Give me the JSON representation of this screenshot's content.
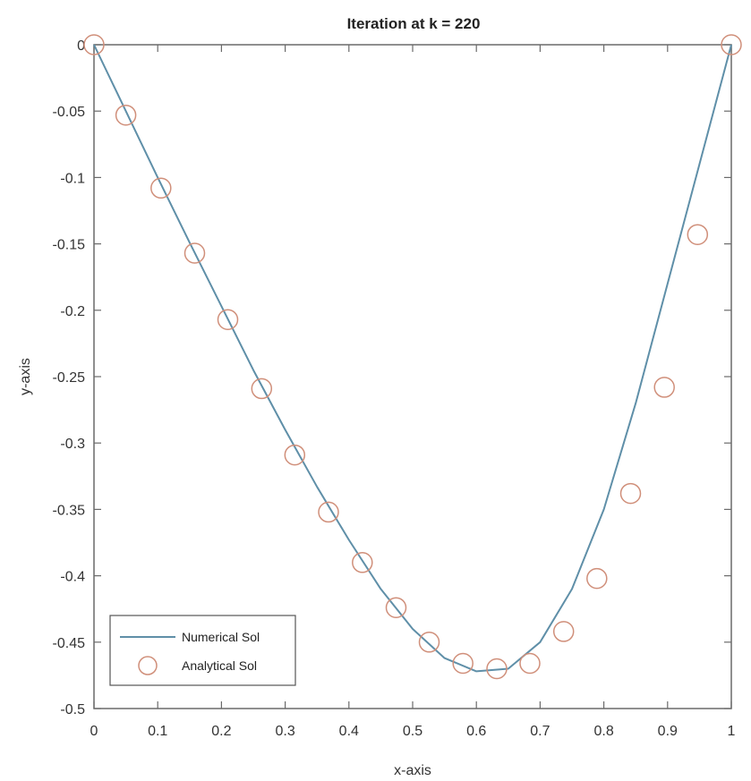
{
  "chart_data": {
    "type": "line",
    "title": "Iteration at k = 220",
    "xlabel": "x-axis",
    "ylabel": "y-axis",
    "xlim": [
      0,
      1
    ],
    "ylim": [
      -0.5,
      0
    ],
    "xticks": [
      "0",
      "0.1",
      "0.2",
      "0.3",
      "0.4",
      "0.5",
      "0.6",
      "0.7",
      "0.8",
      "0.9",
      "1"
    ],
    "yticks": [
      "0",
      "-0.05",
      "-0.1",
      "-0.15",
      "-0.2",
      "-0.25",
      "-0.3",
      "-0.35",
      "-0.4",
      "-0.45",
      "-0.5"
    ],
    "grid": false,
    "legend_location": "bottom-left",
    "series": [
      {
        "name": "Numerical Sol",
        "style": "line",
        "color": "#5f8fa8",
        "x": [
          0,
          0.05,
          0.1,
          0.15,
          0.2,
          0.25,
          0.3,
          0.35,
          0.4,
          0.45,
          0.5,
          0.55,
          0.6,
          0.65,
          0.7,
          0.75,
          0.8,
          0.85,
          0.9,
          0.95,
          1
        ],
        "y": [
          0,
          -0.05,
          -0.1,
          -0.149,
          -0.197,
          -0.245,
          -0.29,
          -0.333,
          -0.373,
          -0.41,
          -0.44,
          -0.462,
          -0.472,
          -0.47,
          -0.45,
          -0.41,
          -0.35,
          -0.27,
          -0.18,
          -0.09,
          0
        ]
      },
      {
        "name": "Analytical Sol",
        "style": "marker",
        "marker": "circle",
        "color": "#d08f7a",
        "x": [
          0,
          0.05,
          0.105,
          0.158,
          0.21,
          0.263,
          0.315,
          0.368,
          0.421,
          0.474,
          0.526,
          0.579,
          0.632,
          0.684,
          0.737,
          0.789,
          0.842,
          0.895,
          0.947,
          1
        ],
        "y": [
          0,
          -0.053,
          -0.108,
          -0.157,
          -0.207,
          -0.259,
          -0.309,
          -0.352,
          -0.39,
          -0.424,
          -0.45,
          -0.466,
          -0.47,
          -0.466,
          -0.442,
          -0.402,
          -0.338,
          -0.258,
          -0.143,
          0
        ]
      }
    ]
  }
}
